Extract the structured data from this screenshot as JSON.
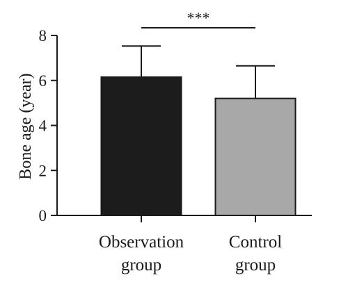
{
  "chart_data": {
    "type": "bar",
    "title": "",
    "xlabel": "",
    "ylabel": "Bone age (year)",
    "ylim": [
      0,
      8
    ],
    "yticks": [
      0,
      2,
      4,
      6,
      8
    ],
    "grid": false,
    "legend": "none",
    "categories": [
      [
        "Observation",
        "group"
      ],
      [
        "Control",
        "group"
      ]
    ],
    "values": [
      6.15,
      5.2
    ],
    "error_upper": [
      1.38,
      1.45
    ],
    "bar_colors": [
      "#1c1c1c",
      "#a8a8a8"
    ],
    "significance": {
      "label": "***",
      "between": [
        0,
        1
      ]
    }
  }
}
